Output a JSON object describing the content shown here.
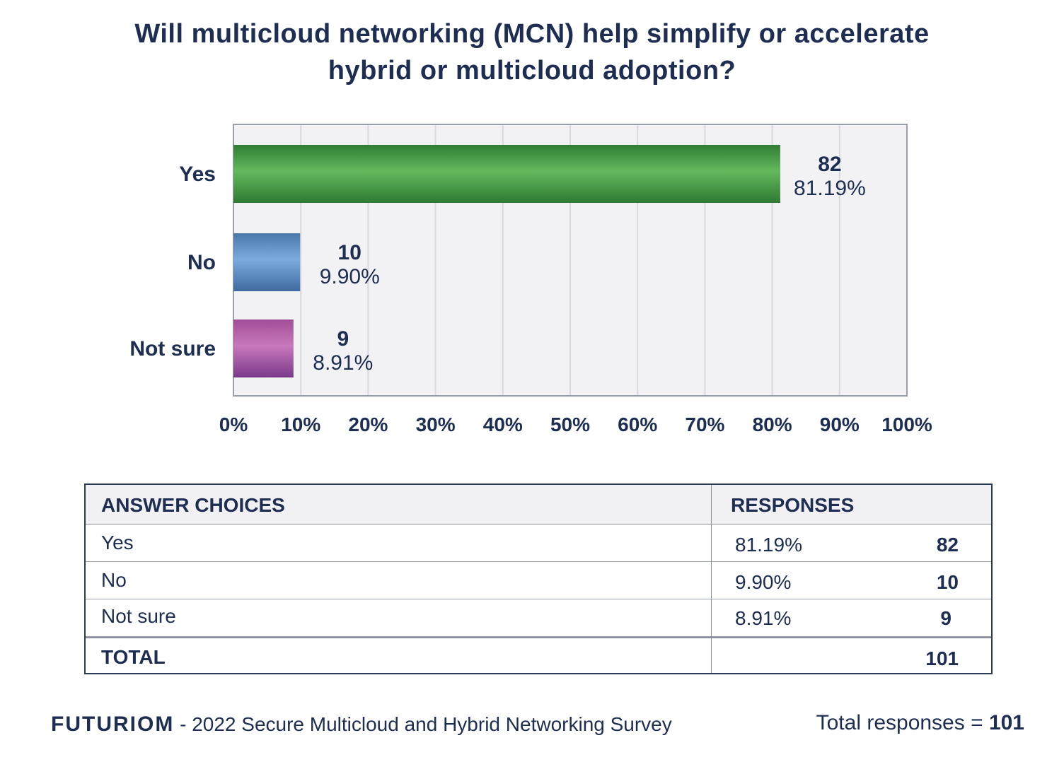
{
  "chart_data": {
    "type": "bar",
    "orientation": "horizontal",
    "title": "Will multicloud networking (MCN) help simplify or accelerate hybrid or multicloud adoption?",
    "title_lines": [
      "Will multicloud networking (MCN) help simplify or accelerate",
      "hybrid or multicloud adoption?"
    ],
    "categories": [
      "Yes",
      "No",
      "Not sure"
    ],
    "values": [
      81.19,
      9.9,
      8.91
    ],
    "counts": [
      82,
      10,
      9
    ],
    "value_labels": [
      "81.19%",
      "9.90%",
      "8.91%"
    ],
    "count_labels": [
      "82",
      "10",
      "9"
    ],
    "colors": [
      "#4fa54f",
      "#6a9fd4",
      "#b85fad"
    ],
    "xlim": [
      0,
      100
    ],
    "xticks": [
      "0%",
      "10%",
      "20%",
      "30%",
      "40%",
      "50%",
      "60%",
      "70%",
      "80%",
      "90%",
      "100%"
    ],
    "grid": true
  },
  "table": {
    "header": {
      "choices": "ANSWER CHOICES",
      "responses": "RESPONSES"
    },
    "rows": [
      {
        "choice": "Yes",
        "pct": "81.19%",
        "count": "82"
      },
      {
        "choice": "No",
        "pct": "9.90%",
        "count": "10"
      },
      {
        "choice": "Not sure",
        "pct": "8.91%",
        "count": "9"
      }
    ],
    "total": {
      "label": "TOTAL",
      "count": "101"
    }
  },
  "footer": {
    "brand": "FUTURIOM",
    "survey": " - 2022 Secure Multicloud and Hybrid Networking Survey",
    "total_label": "Total responses = ",
    "total_value": "101"
  }
}
